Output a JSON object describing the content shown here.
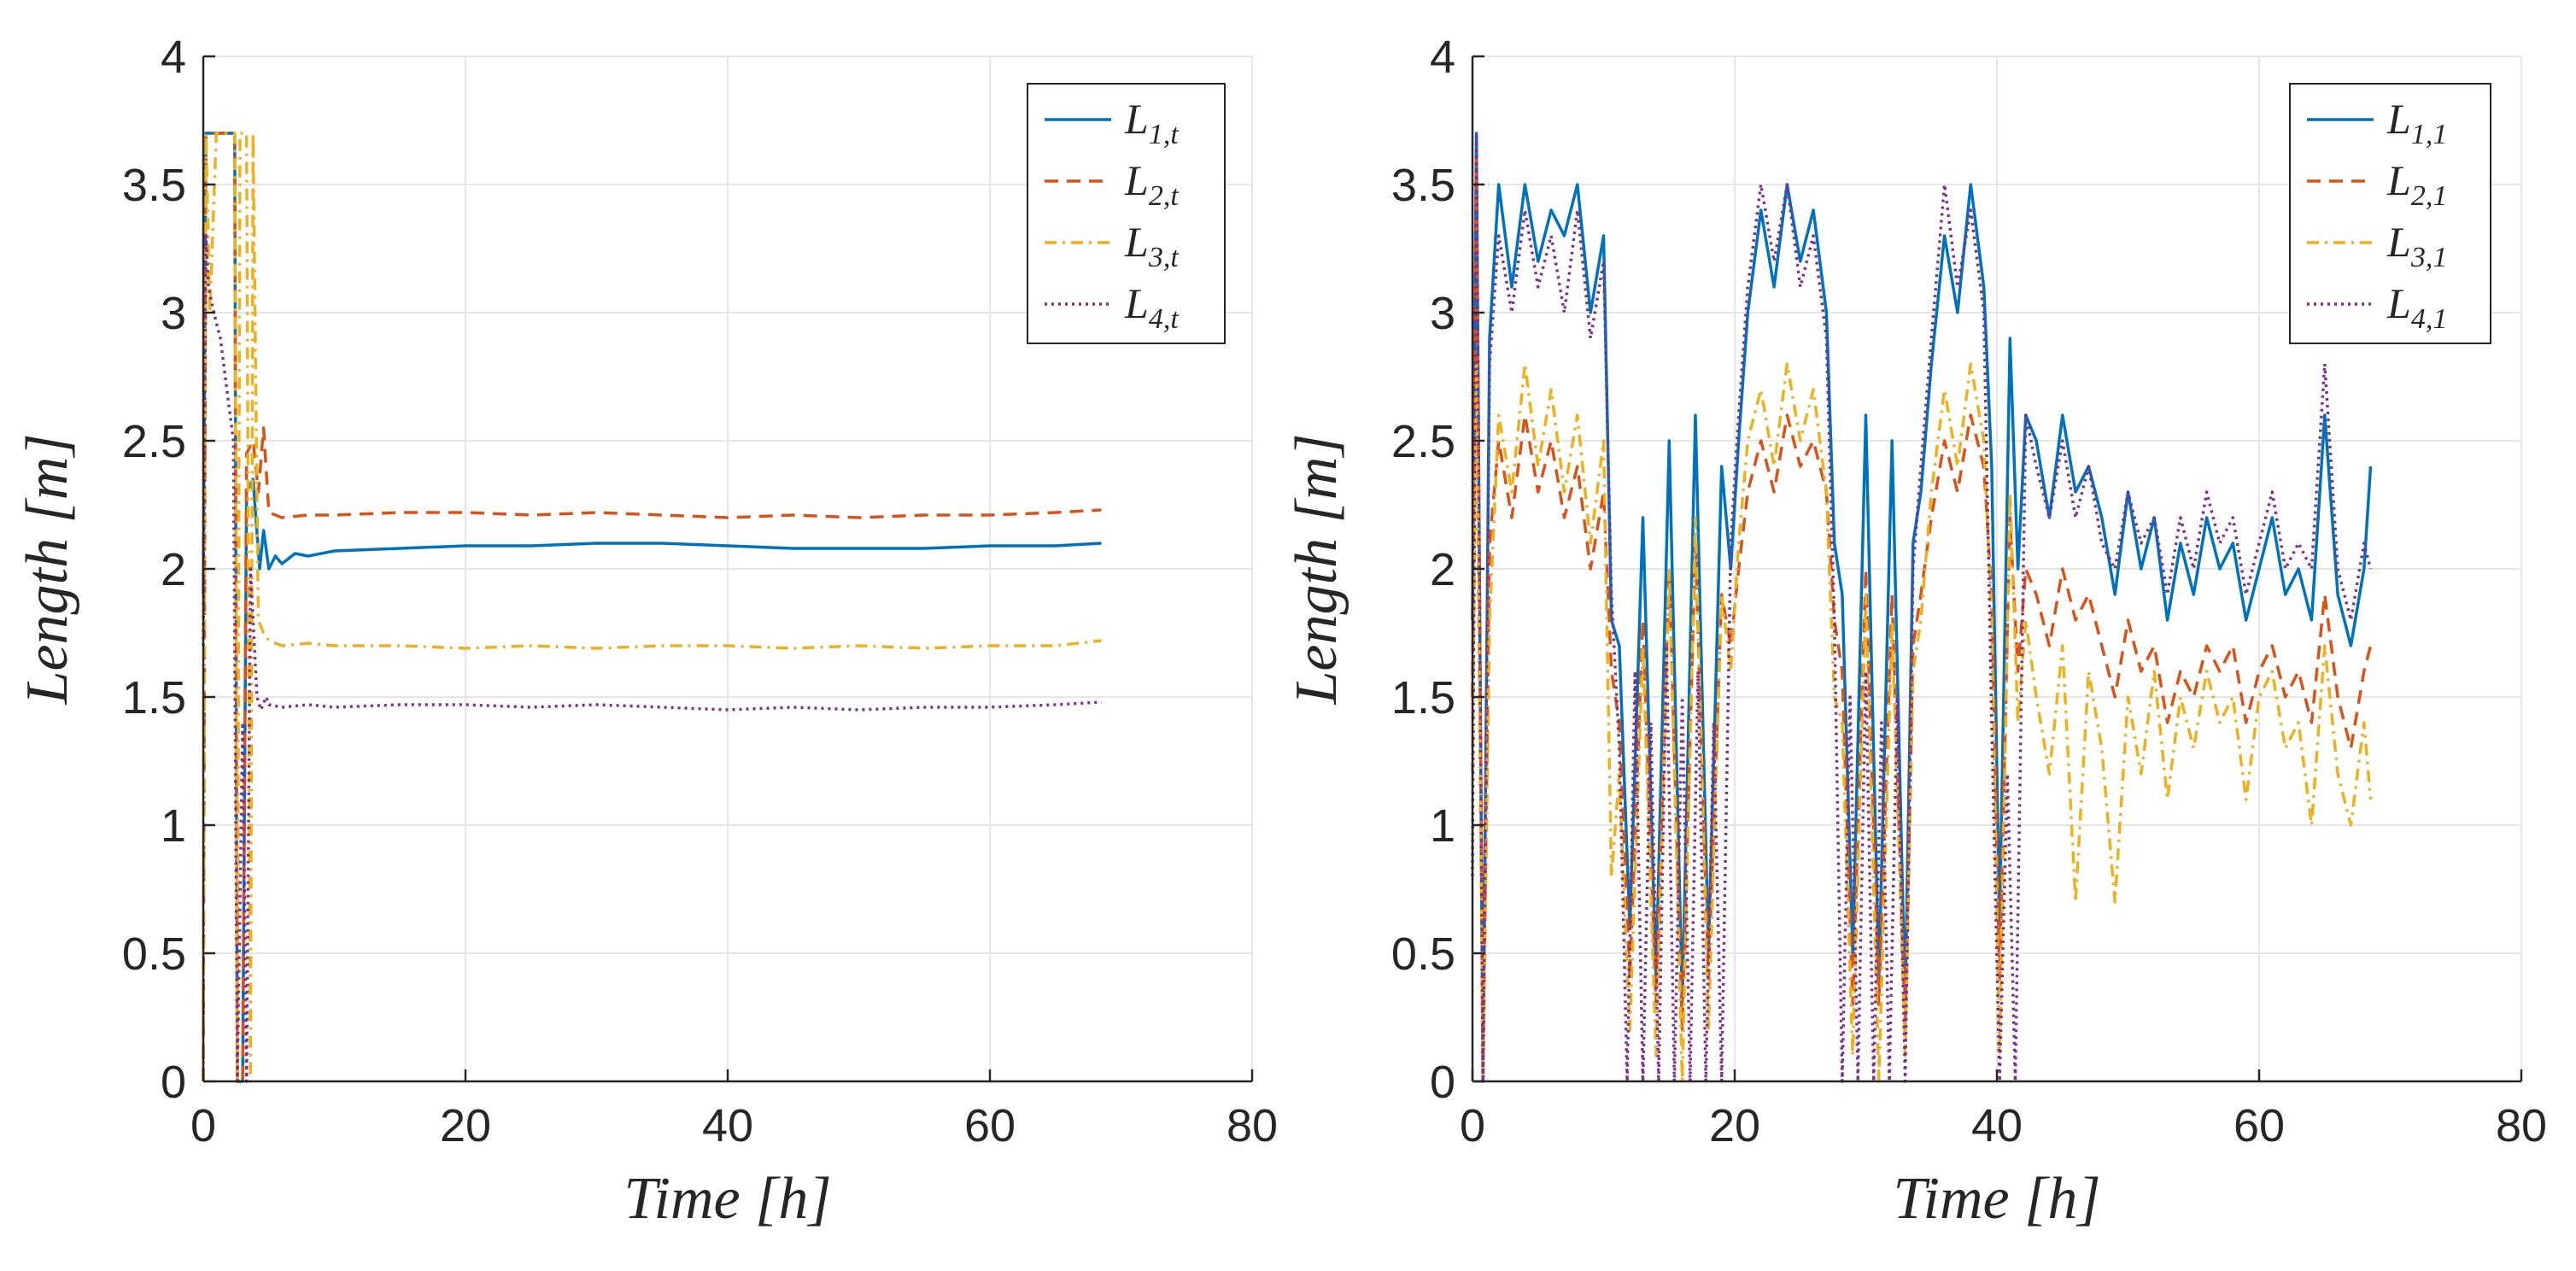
{
  "chart_data": [
    {
      "type": "line",
      "title": "",
      "xlabel": "Time [h]",
      "ylabel": "Length [m]",
      "xlim": [
        0,
        80
      ],
      "ylim": [
        0,
        4
      ],
      "xticks": [
        0,
        20,
        40,
        60,
        80
      ],
      "xtick_labels": [
        "0",
        "20",
        "40",
        "60",
        "80"
      ],
      "yticks": [
        0,
        0.5,
        1,
        1.5,
        2,
        2.5,
        3,
        3.5,
        4
      ],
      "ytick_labels": [
        "0",
        "0.5",
        "1",
        "1.5",
        "2",
        "2.5",
        "3",
        "3.5",
        "4"
      ],
      "grid": true,
      "legend_position": "top-right",
      "series": [
        {
          "name": "L_{1,t}",
          "base": "L",
          "sub": "1,t",
          "color": "#0072BD",
          "style": "solid",
          "x": [
            0,
            0.2,
            1.5,
            2.4,
            2.6,
            3.0,
            3.3,
            3.8,
            4.3,
            4.6,
            5.0,
            5.5,
            6.0,
            7.0,
            8.0,
            10.0,
            15.0,
            20.0,
            25.0,
            30.0,
            35.0,
            40.0,
            45.0,
            50.0,
            55.0,
            60.0,
            65.0,
            68.5
          ],
          "values": [
            1.9,
            3.7,
            3.7,
            3.7,
            0.0,
            0.0,
            2.3,
            2.35,
            2.0,
            2.15,
            2.0,
            2.05,
            2.02,
            2.06,
            2.05,
            2.07,
            2.08,
            2.09,
            2.09,
            2.1,
            2.1,
            2.09,
            2.08,
            2.08,
            2.08,
            2.09,
            2.09,
            2.1
          ]
        },
        {
          "name": "L_{2,t}",
          "base": "L",
          "sub": "2,t",
          "color": "#D95319",
          "style": "dashed",
          "x": [
            0,
            0.2,
            0.5,
            1.0,
            2.4,
            2.6,
            3.0,
            3.3,
            3.8,
            4.2,
            4.6,
            5.0,
            6.0,
            8.0,
            10.0,
            15.0,
            20.0,
            25.0,
            30.0,
            35.0,
            40.0,
            45.0,
            50.0,
            55.0,
            60.0,
            65.0,
            68.5
          ],
          "values": [
            0.0,
            3.7,
            3.7,
            3.7,
            3.7,
            0.0,
            0.0,
            2.45,
            2.5,
            2.3,
            2.55,
            2.22,
            2.2,
            2.21,
            2.21,
            2.22,
            2.22,
            2.21,
            2.22,
            2.21,
            2.2,
            2.21,
            2.2,
            2.21,
            2.21,
            2.22,
            2.23
          ]
        },
        {
          "name": "L_{3,t}",
          "base": "L",
          "sub": "3,t",
          "color": "#EDB120",
          "style": "dashdot",
          "x": [
            0,
            0.2,
            0.5,
            1.0,
            2.4,
            2.6,
            2.8,
            3.3,
            3.6,
            3.8,
            4.2,
            4.6,
            5.0,
            6.0,
            8.0,
            10.0,
            15.0,
            20.0,
            25.0,
            30.0,
            35.0,
            40.0,
            45.0,
            50.0,
            55.0,
            60.0,
            65.0,
            68.5
          ],
          "values": [
            0.0,
            3.7,
            3.0,
            3.7,
            3.7,
            0.0,
            3.7,
            3.7,
            0.0,
            3.7,
            1.8,
            1.75,
            1.72,
            1.7,
            1.71,
            1.7,
            1.7,
            1.69,
            1.7,
            1.69,
            1.7,
            1.7,
            1.69,
            1.7,
            1.69,
            1.7,
            1.7,
            1.72
          ]
        },
        {
          "name": "L_{4,t}",
          "base": "L",
          "sub": "4,t",
          "color": "#7E2F8E",
          "style": "dotted",
          "x": [
            0,
            0.2,
            0.4,
            0.8,
            1.3,
            1.8,
            2.3,
            2.6,
            3.0,
            3.3,
            3.6,
            3.8,
            4.1,
            4.4,
            4.8,
            5.0,
            6.0,
            8.0,
            10.0,
            15.0,
            20.0,
            25.0,
            30.0,
            35.0,
            40.0,
            45.0,
            50.0,
            55.0,
            60.0,
            65.0,
            68.5
          ],
          "values": [
            1.7,
            3.3,
            3.1,
            3.0,
            2.9,
            2.7,
            2.5,
            0.0,
            1.4,
            0.0,
            2.0,
            1.8,
            1.5,
            1.45,
            1.5,
            1.47,
            1.46,
            1.47,
            1.46,
            1.47,
            1.47,
            1.46,
            1.47,
            1.46,
            1.45,
            1.46,
            1.45,
            1.46,
            1.46,
            1.47,
            1.48
          ]
        }
      ]
    },
    {
      "type": "line",
      "title": "",
      "xlabel": "Time [h]",
      "ylabel": "Length [m]",
      "xlim": [
        0,
        80
      ],
      "ylim": [
        0,
        4
      ],
      "xticks": [
        0,
        20,
        40,
        60,
        80
      ],
      "xtick_labels": [
        "0",
        "20",
        "40",
        "60",
        "80"
      ],
      "yticks": [
        0,
        0.5,
        1,
        1.5,
        2,
        2.5,
        3,
        3.5,
        4
      ],
      "ytick_labels": [
        "0",
        "0.5",
        "1",
        "1.5",
        "2",
        "2.5",
        "3",
        "3.5",
        "4"
      ],
      "grid": true,
      "legend_position": "top-right",
      "series": [
        {
          "name": "L_{1,1}",
          "base": "L",
          "sub": "1,1",
          "color": "#0072BD",
          "style": "solid",
          "x": [
            0,
            0.3,
            0.8,
            1.3,
            2,
            3,
            4,
            5,
            6,
            7,
            8,
            9,
            10,
            10.6,
            11.2,
            12,
            13,
            14,
            15,
            16,
            17,
            18,
            19,
            19.7,
            20.3,
            21,
            22,
            23,
            24,
            25,
            26,
            27,
            27.6,
            28.2,
            29,
            30,
            31,
            32,
            33,
            33.6,
            34.2,
            35,
            36,
            37,
            38,
            39,
            39.6,
            40.2,
            41,
            41.6,
            42.2,
            43,
            44,
            45,
            46,
            47,
            48,
            49,
            50,
            51,
            52,
            53,
            54,
            55,
            56,
            57,
            58,
            59,
            60,
            61,
            62,
            63,
            64,
            65,
            66,
            67,
            68,
            68.5
          ],
          "values": [
            1.8,
            3.7,
            0.0,
            2.9,
            3.5,
            3.1,
            3.5,
            3.2,
            3.4,
            3.3,
            3.5,
            3.0,
            3.3,
            1.8,
            1.7,
            0.6,
            2.2,
            0.4,
            2.5,
            0.3,
            2.6,
            0.5,
            2.4,
            2.0,
            2.5,
            3.0,
            3.4,
            3.1,
            3.5,
            3.2,
            3.4,
            3.0,
            2.1,
            1.9,
            0.5,
            2.6,
            0.4,
            2.5,
            0.3,
            2.1,
            2.3,
            2.8,
            3.3,
            3.0,
            3.5,
            3.1,
            2.4,
            0.6,
            2.9,
            2.0,
            2.6,
            2.5,
            2.2,
            2.6,
            2.3,
            2.4,
            2.2,
            1.9,
            2.3,
            2.0,
            2.2,
            1.8,
            2.1,
            1.9,
            2.2,
            2.0,
            2.1,
            1.8,
            2.0,
            2.2,
            1.9,
            2.0,
            1.8,
            2.6,
            1.9,
            1.7,
            2.0,
            2.4
          ]
        },
        {
          "name": "L_{2,1}",
          "base": "L",
          "sub": "2,1",
          "color": "#D95319",
          "style": "dashed",
          "x": [
            0,
            0.3,
            0.8,
            1.3,
            2,
            3,
            4,
            5,
            6,
            7,
            8,
            9,
            10,
            10.6,
            11.2,
            12,
            13,
            14,
            15,
            16,
            17,
            18,
            19,
            19.7,
            20.3,
            21,
            22,
            23,
            24,
            25,
            26,
            27,
            27.6,
            28.2,
            29,
            30,
            31,
            32,
            33,
            33.6,
            34.2,
            35,
            36,
            37,
            38,
            39,
            39.6,
            40.2,
            41,
            41.6,
            42.2,
            43,
            44,
            45,
            46,
            47,
            48,
            49,
            50,
            51,
            52,
            53,
            54,
            55,
            56,
            57,
            58,
            59,
            60,
            61,
            62,
            63,
            64,
            65,
            66,
            67,
            68,
            68.5
          ],
          "values": [
            1.5,
            3.6,
            0.0,
            2.1,
            2.5,
            2.2,
            2.6,
            2.3,
            2.5,
            2.2,
            2.4,
            2.0,
            2.3,
            1.6,
            1.4,
            0.4,
            1.8,
            0.3,
            2.0,
            0.2,
            2.1,
            0.4,
            1.9,
            1.7,
            2.0,
            2.3,
            2.5,
            2.3,
            2.6,
            2.4,
            2.5,
            2.3,
            1.8,
            1.6,
            0.3,
            2.0,
            0.3,
            1.9,
            0.2,
            1.7,
            1.9,
            2.2,
            2.5,
            2.3,
            2.6,
            2.4,
            1.9,
            0.4,
            2.2,
            1.6,
            2.0,
            1.9,
            1.7,
            2.0,
            1.8,
            1.9,
            1.7,
            1.5,
            1.8,
            1.6,
            1.7,
            1.4,
            1.6,
            1.5,
            1.7,
            1.6,
            1.7,
            1.4,
            1.6,
            1.7,
            1.5,
            1.6,
            1.4,
            1.9,
            1.5,
            1.3,
            1.6,
            1.7
          ]
        },
        {
          "name": "L_{3,1}",
          "base": "L",
          "sub": "3,1",
          "color": "#EDB120",
          "style": "dashdot",
          "x": [
            0,
            0.3,
            0.8,
            1.3,
            2,
            3,
            4,
            5,
            6,
            7,
            8,
            9,
            10,
            10.6,
            11.2,
            12,
            13,
            14,
            15,
            16,
            17,
            18,
            19,
            19.7,
            20.3,
            21,
            22,
            23,
            24,
            25,
            26,
            27,
            27.6,
            28.2,
            29,
            30,
            31,
            32,
            33,
            33.6,
            34.2,
            35,
            36,
            37,
            38,
            39,
            39.6,
            40.2,
            41,
            41.6,
            42.2,
            43,
            44,
            45,
            46,
            47,
            48,
            49,
            50,
            51,
            52,
            53,
            54,
            55,
            56,
            57,
            58,
            59,
            60,
            61,
            62,
            63,
            64,
            65,
            66,
            67,
            68,
            68.5
          ],
          "values": [
            1.2,
            2.8,
            0.0,
            1.8,
            2.6,
            2.3,
            2.8,
            2.4,
            2.7,
            2.3,
            2.6,
            2.1,
            2.5,
            0.8,
            1.2,
            0.2,
            1.7,
            0.1,
            2.0,
            0.0,
            2.2,
            0.2,
            1.9,
            1.6,
            2.1,
            2.5,
            2.7,
            2.4,
            2.8,
            2.5,
            2.7,
            2.3,
            1.5,
            1.4,
            0.1,
            1.9,
            0.0,
            1.8,
            0.1,
            1.6,
            1.8,
            2.3,
            2.7,
            2.4,
            2.8,
            2.5,
            1.8,
            0.1,
            2.3,
            1.4,
            1.8,
            1.5,
            1.2,
            1.7,
            0.7,
            1.6,
            1.3,
            0.7,
            1.5,
            1.2,
            1.6,
            1.1,
            1.5,
            1.3,
            1.6,
            1.4,
            1.5,
            1.1,
            1.5,
            1.6,
            1.3,
            1.4,
            1.0,
            1.7,
            1.2,
            1.0,
            1.4,
            1.1
          ]
        },
        {
          "name": "L_{4,1}",
          "base": "L",
          "sub": "4,1",
          "color": "#7E2F8E",
          "style": "dotted",
          "x": [
            0,
            0.3,
            0.8,
            1.3,
            2,
            3,
            4,
            5,
            6,
            7,
            8,
            9,
            10,
            10.6,
            11.2,
            11.8,
            12.4,
            13,
            13.6,
            14.2,
            14.8,
            15.4,
            16,
            16.6,
            17.2,
            17.8,
            18.4,
            19,
            19.7,
            20.3,
            21,
            22,
            23,
            24,
            25,
            26,
            27,
            27.6,
            28.2,
            28.8,
            29.4,
            30,
            30.6,
            31.2,
            31.8,
            32.4,
            33,
            33.6,
            34.2,
            35,
            36,
            37,
            38,
            39,
            39.6,
            40.2,
            40.8,
            41.4,
            42.2,
            43,
            44,
            45,
            46,
            47,
            48,
            49,
            50,
            51,
            52,
            53,
            54,
            55,
            56,
            57,
            58,
            59,
            60,
            61,
            62,
            63,
            64,
            65,
            66,
            67,
            68,
            68.5
          ],
          "values": [
            0.8,
            3.7,
            0.0,
            2.8,
            3.3,
            3.0,
            3.4,
            3.1,
            3.3,
            3.0,
            3.4,
            2.9,
            3.2,
            1.9,
            1.3,
            0.0,
            1.6,
            0.0,
            1.4,
            0.0,
            1.7,
            0.0,
            1.5,
            0.0,
            1.6,
            0.0,
            1.4,
            0.0,
            2.1,
            2.6,
            3.1,
            3.5,
            3.2,
            3.5,
            3.1,
            3.3,
            2.9,
            1.8,
            0.0,
            1.5,
            0.0,
            1.6,
            0.0,
            1.4,
            0.0,
            1.5,
            0.0,
            2.0,
            2.4,
            2.9,
            3.5,
            3.1,
            3.4,
            3.0,
            1.4,
            0.0,
            1.2,
            0.0,
            2.6,
            2.4,
            2.2,
            2.5,
            2.2,
            2.4,
            2.1,
            2.0,
            2.3,
            2.1,
            2.2,
            1.9,
            2.2,
            2.0,
            2.3,
            2.1,
            2.2,
            1.9,
            2.1,
            2.3,
            2.0,
            2.1,
            2.0,
            2.8,
            2.0,
            1.8,
            2.1,
            2.0
          ]
        }
      ]
    }
  ]
}
